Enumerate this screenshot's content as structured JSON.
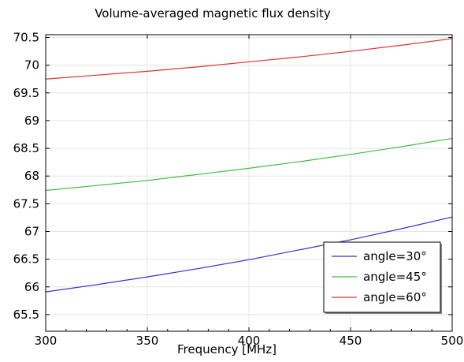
{
  "chart_data": {
    "type": "line",
    "title": "Volume-averaged magnetic flux density",
    "xlabel": "Frequency [MHz]",
    "ylabel": "",
    "xlim": [
      300,
      500
    ],
    "ylim": [
      65.2,
      70.55
    ],
    "xticks": [
      300,
      350,
      400,
      450,
      500
    ],
    "yticks": [
      65.5,
      66,
      66.5,
      67,
      67.5,
      68,
      68.5,
      69,
      69.5,
      70,
      70.5
    ],
    "ytick_labels": [
      "65.5",
      "66",
      "66.5",
      "67",
      "67.5",
      "68",
      "68.5",
      "69",
      "69.5",
      "70",
      "70.5"
    ],
    "grid": true,
    "legend_position": "bottom-right",
    "x": [
      300,
      325,
      350,
      375,
      400,
      425,
      450,
      475,
      500
    ],
    "series": [
      {
        "name": "angle=30°",
        "color": "#3333cc",
        "values": [
          65.91,
          66.04,
          66.18,
          66.33,
          66.49,
          66.67,
          66.85,
          67.05,
          67.26
        ]
      },
      {
        "name": "angle=45°",
        "color": "#44bb44",
        "values": [
          67.74,
          67.83,
          67.92,
          68.03,
          68.14,
          68.26,
          68.39,
          68.53,
          68.68
        ]
      },
      {
        "name": "angle=60°",
        "color": "#dd3333",
        "values": [
          69.75,
          69.82,
          69.89,
          69.97,
          70.06,
          70.15,
          70.25,
          70.36,
          70.48
        ]
      }
    ]
  }
}
